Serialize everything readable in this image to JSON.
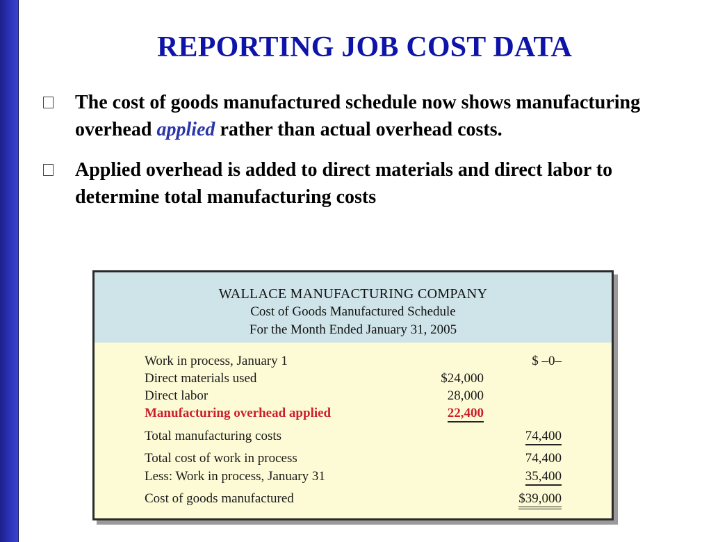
{
  "title": "REPORTING JOB COST DATA",
  "bullets": [
    {
      "text_before": "The cost of goods manufactured schedule now shows manufacturing overhead ",
      "emphasis": "applied",
      "text_after": " rather than actual overhead costs."
    },
    {
      "text": "Applied overhead is added to direct materials and direct labor to determine total manufacturing costs"
    }
  ],
  "schedule": {
    "company": "WALLACE MANUFACTURING COMPANY",
    "report_name": "Cost of Goods Manufactured Schedule",
    "period": "For the Month Ended January 31, 2005",
    "rows": [
      {
        "label": "Work in process, January 1",
        "col1": "",
        "col2": "$ –0–"
      },
      {
        "label": "Direct materials used",
        "col1": "$24,000",
        "col2": ""
      },
      {
        "label": "Direct labor",
        "col1": "28,000",
        "col2": ""
      },
      {
        "label": "Manufacturing overhead applied",
        "col1": "22,400",
        "col2": ""
      },
      {
        "label": "Total manufacturing costs",
        "col1": "",
        "col2": "74,400"
      },
      {
        "label": "Total cost of work in process",
        "col1": "",
        "col2": "74,400"
      },
      {
        "label": "Less: Work in process, January 31",
        "col1": "",
        "col2": "35,400"
      },
      {
        "label": "Cost of goods manufactured",
        "col1": "",
        "col2": "$39,000"
      }
    ]
  },
  "colors": {
    "title": "#0f14a8",
    "emphasis": "#2a36a8",
    "highlight_row": "#cc1f2b",
    "schedule_header_bg": "#cfe4e8",
    "schedule_body_bg": "#fdfbd5",
    "left_bar": "#2c33b8"
  }
}
